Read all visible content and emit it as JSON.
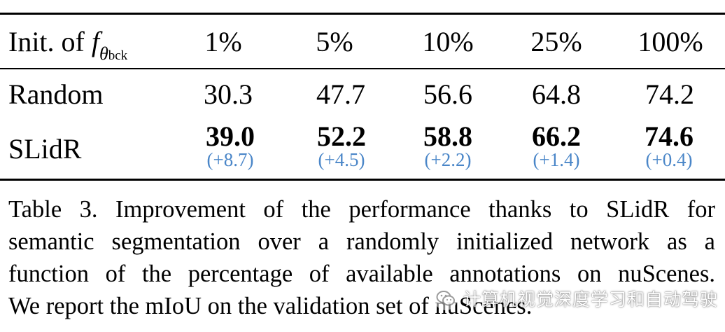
{
  "table": {
    "header": {
      "label_prefix": "Init. of ",
      "label_f": "f",
      "label_theta": "θ",
      "label_bck": "bck",
      "columns": [
        "1%",
        "5%",
        "10%",
        "25%",
        "100%"
      ]
    },
    "rows": [
      {
        "method": "Random",
        "values": [
          "30.3",
          "47.7",
          "56.6",
          "64.8",
          "74.2"
        ]
      },
      {
        "method": "SLidR",
        "values": [
          "39.0",
          "52.2",
          "58.8",
          "66.2",
          "74.6"
        ],
        "deltas": [
          "(+8.7)",
          "(+4.5)",
          "(+2.2)",
          "(+1.4)",
          "(+0.4)"
        ]
      }
    ],
    "delta_color": "#4a86c8"
  },
  "caption": {
    "lines": [
      "Table 3.  Improvement of the performance thanks to SLidR for",
      "semantic segmentation over a randomly initialized network as a",
      "function of the percentage of available annotations on nuScenes.",
      "We report the mIoU on the validation set of nuScenes."
    ]
  },
  "watermark": {
    "icon": "wechat-icon",
    "text": "计算机视觉深度学习和自动驾驶"
  }
}
